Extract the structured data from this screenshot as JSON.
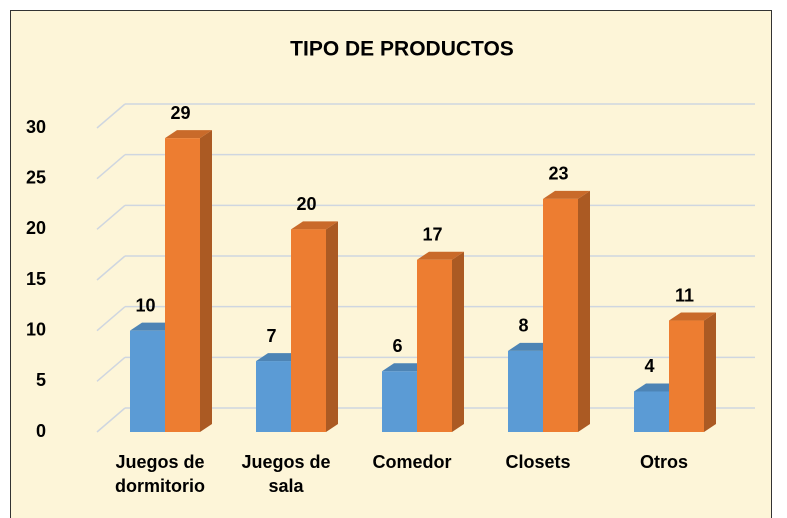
{
  "chart_data": {
    "type": "bar3d",
    "title": "TIPO DE PRODUCTOS",
    "categories": [
      "Juegos de dormitorio",
      "Juegos de sala",
      "Comedor",
      "Closets",
      "Otros"
    ],
    "series": [
      {
        "color": "#5b9bd5",
        "values": [
          10,
          7,
          6,
          8,
          4
        ]
      },
      {
        "color": "#ed7d31",
        "values": [
          29,
          20,
          17,
          23,
          11
        ]
      }
    ],
    "ylim": [
      0,
      30
    ],
    "yticks": [
      0,
      5,
      10,
      15,
      20,
      25,
      30
    ],
    "grid": true,
    "data_labels": true
  }
}
